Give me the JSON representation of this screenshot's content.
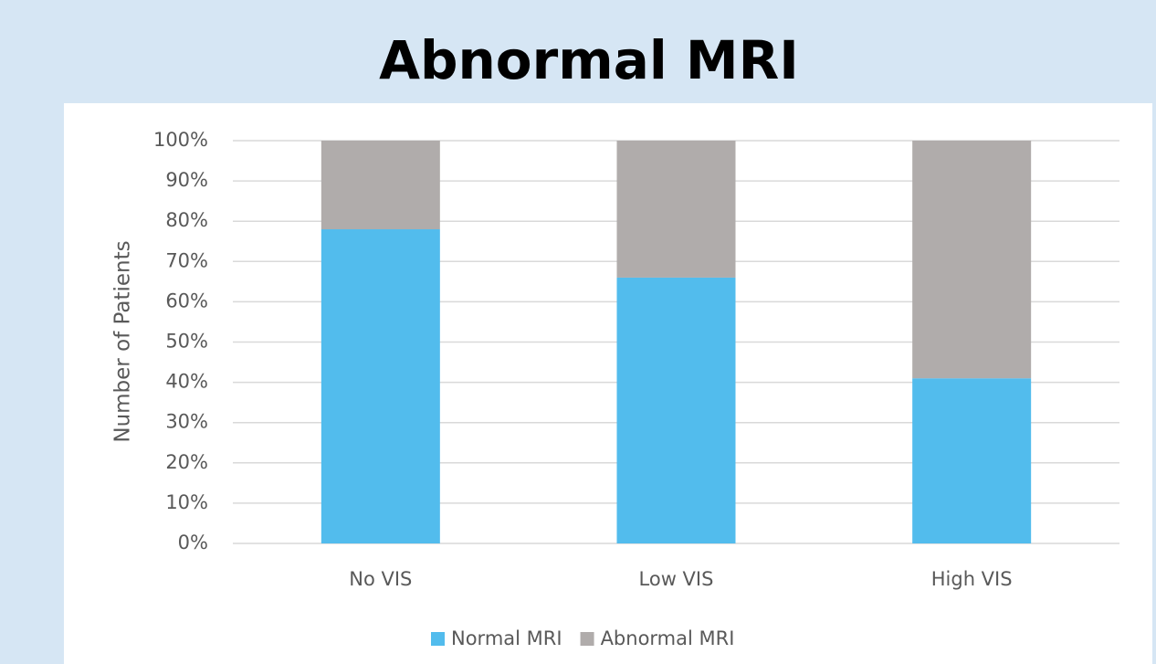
{
  "chart_data": {
    "type": "stacked_bar",
    "title": "Abnormal MRI",
    "y_label": "Number of Patients",
    "categories": [
      "No VIS",
      "Low VIS",
      "High VIS"
    ],
    "series": [
      {
        "name": "Normal MRI",
        "color": "#52bced",
        "values": [
          78,
          66,
          41
        ]
      },
      {
        "name": "Abnormal MRI",
        "color": "#b0acab",
        "values": [
          22,
          34,
          59
        ]
      }
    ],
    "ylim": [
      0,
      100
    ],
    "yticks": [
      {
        "value": 0,
        "label": "0%"
      },
      {
        "value": 10,
        "label": "10%"
      },
      {
        "value": 20,
        "label": "20%"
      },
      {
        "value": 30,
        "label": "30%"
      },
      {
        "value": 40,
        "label": "40%"
      },
      {
        "value": 50,
        "label": "50%"
      },
      {
        "value": 60,
        "label": "60%"
      },
      {
        "value": 70,
        "label": "70%"
      },
      {
        "value": 80,
        "label": "80%"
      },
      {
        "value": 90,
        "label": "90%"
      },
      {
        "value": 100,
        "label": "100%"
      }
    ],
    "grid": true,
    "legend": "bottom"
  }
}
